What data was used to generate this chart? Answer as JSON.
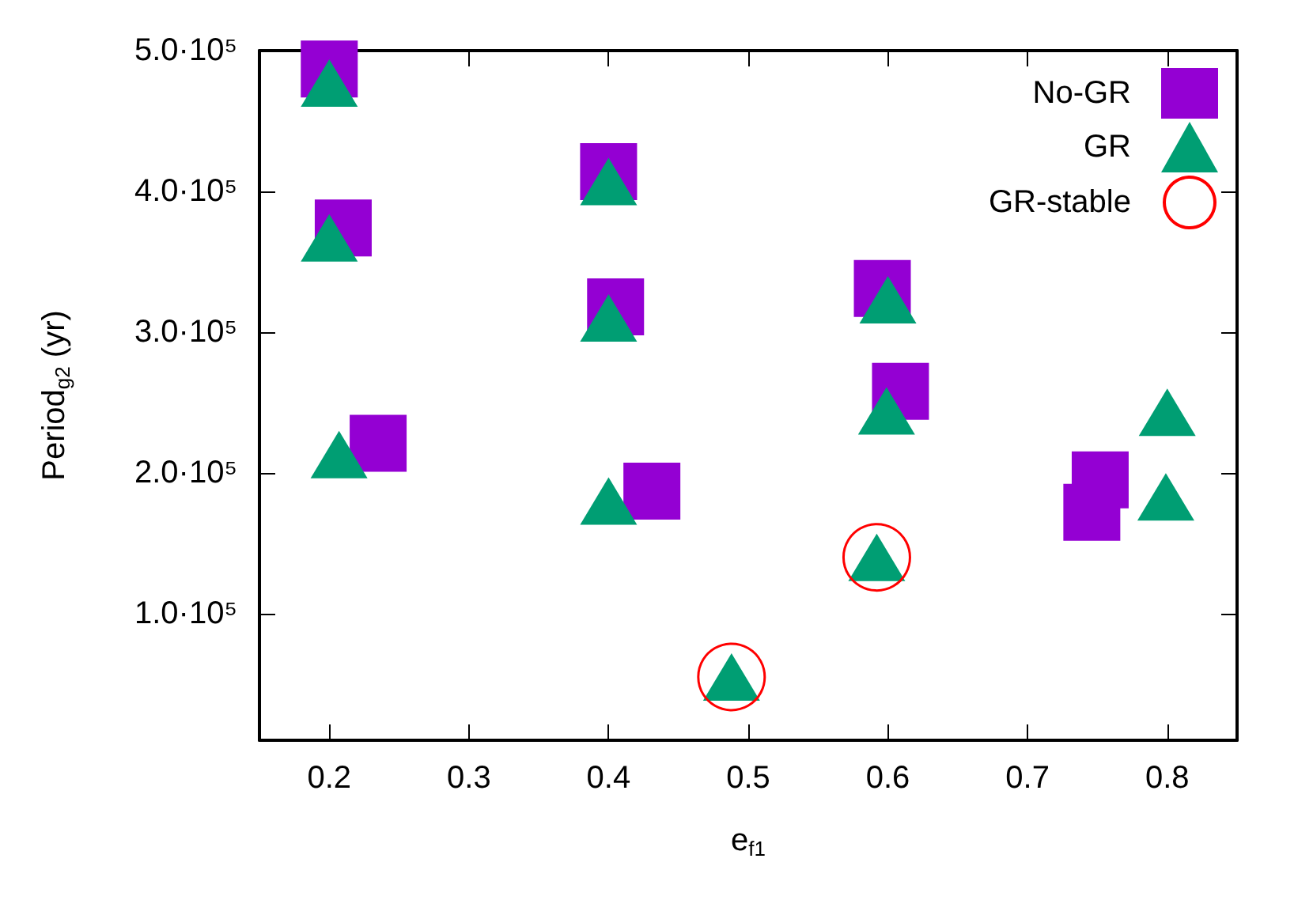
{
  "chart_data": {
    "type": "scatter",
    "xlabel": "e$_{f1}$",
    "ylabel": "Period$_{g2}$ (yr)",
    "xlim": [
      0.15,
      0.85
    ],
    "xticks": [
      0.2,
      0.3,
      0.4,
      0.5,
      0.6,
      0.7,
      0.8
    ],
    "ylim": [
      10000,
      500000
    ],
    "yticks": [
      {
        "value": 100000,
        "label": "1.0·10⁵"
      },
      {
        "value": 200000,
        "label": "2.0·10⁵"
      },
      {
        "value": 300000,
        "label": "3.0·10⁵"
      },
      {
        "value": 400000,
        "label": "4.0·10⁵"
      },
      {
        "value": 500000,
        "label": "5.0·10⁵"
      }
    ],
    "grid": false,
    "legend": "top right",
    "series": [
      {
        "name": "No-GR",
        "color": "#9400d3",
        "marker": "square",
        "x": [
          0.2,
          0.21,
          0.235,
          0.4,
          0.405,
          0.431,
          0.596,
          0.609,
          0.752,
          0.746
        ],
        "values": [
          487000,
          374000,
          221000,
          414000,
          318000,
          187000,
          331000,
          258000,
          195000,
          172000
        ]
      },
      {
        "name": "GR",
        "color": "#009e73",
        "marker": "triangle",
        "x": [
          0.2,
          0.2,
          0.207,
          0.4,
          0.4,
          0.4,
          0.6,
          0.599,
          0.8,
          0.799,
          0.592,
          0.488
        ],
        "values": [
          477000,
          367000,
          213000,
          407000,
          310000,
          180000,
          323000,
          244000,
          243000,
          183000,
          140000,
          55000
        ]
      },
      {
        "name": "GR-stable",
        "color": "#ff0000",
        "marker": "circle",
        "x": [
          0.592,
          0.488
        ],
        "values": [
          140000,
          55000
        ]
      }
    ]
  }
}
